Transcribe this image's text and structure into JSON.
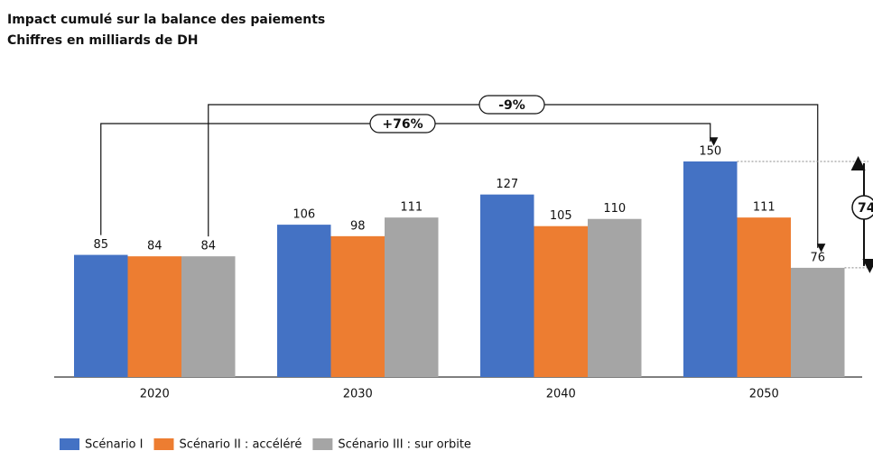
{
  "chart_data": {
    "type": "bar",
    "title": "Impact cumulé sur la balance des paiements",
    "subtitle": "Chiffres en milliards de DH",
    "categories": [
      "2020",
      "2030",
      "2040",
      "2050"
    ],
    "series": [
      {
        "name": "Scénario I",
        "color": "#4472c4",
        "values": [
          85,
          106,
          127,
          150
        ]
      },
      {
        "name": "Scénario II : accéléré",
        "color": "#ed7d31",
        "values": [
          84,
          98,
          105,
          111
        ]
      },
      {
        "name": "Scénario III : sur orbite",
        "color": "#a5a5a5",
        "values": [
          84,
          111,
          110,
          76
        ]
      }
    ],
    "ylim": [
      0,
      150
    ],
    "annotations": [
      "+76%",
      "-9%",
      "74"
    ]
  }
}
